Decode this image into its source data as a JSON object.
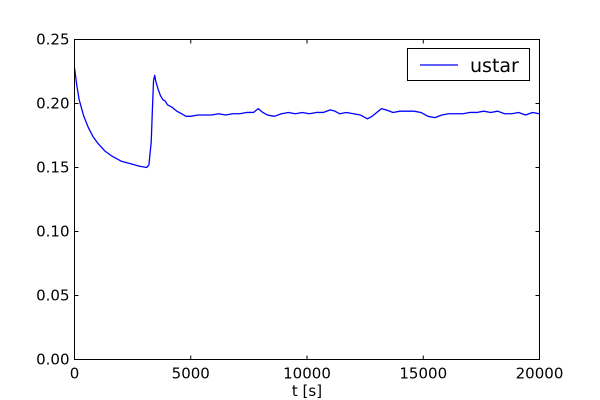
{
  "chart_data": {
    "type": "line",
    "title": "",
    "xlabel": "t [s]",
    "ylabel": "",
    "xlim": [
      0,
      20000
    ],
    "ylim": [
      0,
      0.25
    ],
    "xticks": [
      0,
      5000,
      10000,
      15000,
      20000
    ],
    "xtick_labels": [
      "0",
      "5000",
      "10000",
      "15000",
      "20000"
    ],
    "yticks": [
      0.0,
      0.05,
      0.1,
      0.15,
      0.2,
      0.25
    ],
    "ytick_labels": [
      "0.00",
      "0.05",
      "0.10",
      "0.15",
      "0.20",
      "0.25"
    ],
    "grid": false,
    "legend_position": "top-right",
    "series": [
      {
        "name": "ustar",
        "color": "#0000ff",
        "x": [
          0,
          100,
          200,
          400,
          600,
          800,
          1000,
          1300,
          1600,
          2000,
          2400,
          2800,
          3100,
          3200,
          3300,
          3350,
          3400,
          3450,
          3500,
          3600,
          3700,
          3800,
          3900,
          4000,
          4200,
          4400,
          4600,
          4800,
          5000,
          5300,
          5600,
          5900,
          6200,
          6500,
          6800,
          7100,
          7400,
          7700,
          7900,
          8100,
          8300,
          8600,
          8900,
          9200,
          9500,
          9800,
          10100,
          10400,
          10700,
          11000,
          11200,
          11400,
          11700,
          12000,
          12300,
          12600,
          12800,
          13000,
          13200,
          13400,
          13700,
          14000,
          14300,
          14600,
          14900,
          15200,
          15500,
          15800,
          16100,
          16400,
          16700,
          17000,
          17300,
          17600,
          17900,
          18200,
          18500,
          18800,
          19100,
          19400,
          19700,
          20000
        ],
        "y": [
          0.228,
          0.214,
          0.203,
          0.19,
          0.181,
          0.174,
          0.169,
          0.163,
          0.159,
          0.155,
          0.153,
          0.151,
          0.15,
          0.152,
          0.17,
          0.195,
          0.218,
          0.222,
          0.217,
          0.211,
          0.206,
          0.203,
          0.202,
          0.199,
          0.197,
          0.194,
          0.192,
          0.19,
          0.19,
          0.191,
          0.191,
          0.191,
          0.192,
          0.191,
          0.192,
          0.192,
          0.193,
          0.193,
          0.196,
          0.193,
          0.191,
          0.19,
          0.192,
          0.193,
          0.192,
          0.193,
          0.192,
          0.193,
          0.193,
          0.195,
          0.194,
          0.192,
          0.193,
          0.192,
          0.191,
          0.188,
          0.19,
          0.193,
          0.196,
          0.195,
          0.193,
          0.194,
          0.194,
          0.194,
          0.193,
          0.19,
          0.189,
          0.191,
          0.192,
          0.192,
          0.192,
          0.193,
          0.193,
          0.194,
          0.193,
          0.194,
          0.192,
          0.192,
          0.193,
          0.191,
          0.193,
          0.192
        ]
      }
    ]
  }
}
